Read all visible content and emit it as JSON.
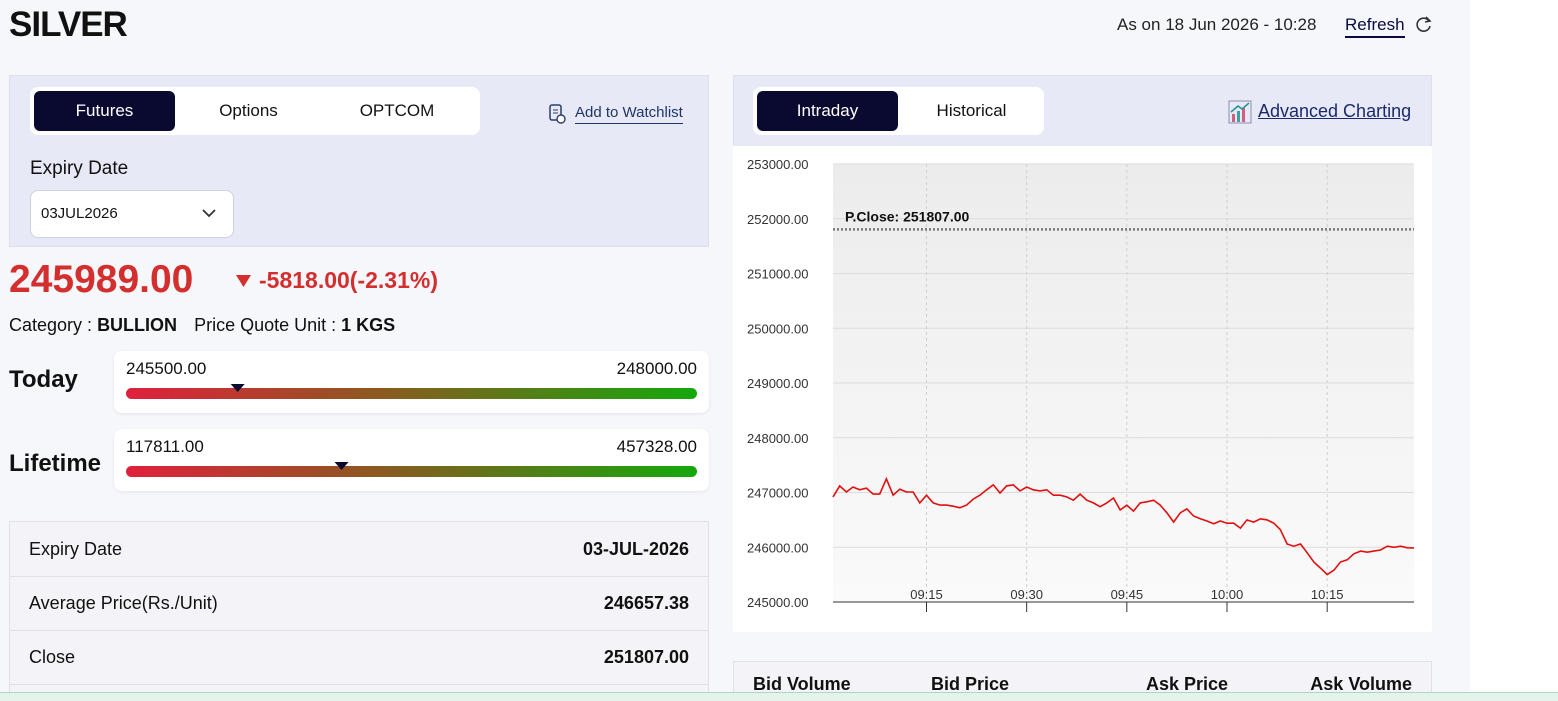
{
  "header": {
    "title": "SILVER",
    "as_on": "As on 18 Jun 2026 - 10:28",
    "refresh": "Refresh"
  },
  "left": {
    "tabs": [
      "Futures",
      "Options",
      "OPTCOM"
    ],
    "watchlist": "Add to Watchlist",
    "expiry_label": "Expiry Date",
    "expiry_value": "03JUL2026",
    "price": "245989.00",
    "change": "-5818.00(-2.31%)",
    "category_label": "Category :",
    "category": "BULLION",
    "unit_label": "Price Quote Unit :",
    "unit": "1 KGS",
    "ranges": [
      {
        "label": "Today",
        "low": "245500.00",
        "high": "248000.00"
      },
      {
        "label": "Lifetime",
        "low": "117811.00",
        "high": "457328.00"
      }
    ],
    "table": {
      "rows": [
        [
          "Expiry Date",
          "03-JUL-2026"
        ],
        [
          "Average Price(Rs./Unit)",
          "246657.38"
        ],
        [
          "Close",
          "251807.00"
        ]
      ]
    }
  },
  "right": {
    "tabs": [
      "Intraday",
      "Historical"
    ],
    "advanced": "Advanced Charting",
    "depth_headers": [
      "Bid Volume",
      "Bid Price",
      "Ask Price",
      "Ask Volume"
    ]
  },
  "chart_data": {
    "type": "line",
    "color": "#e01010",
    "x": [
      "09:01",
      "09:02",
      "09:03",
      "09:04",
      "09:05",
      "09:06",
      "09:07",
      "09:08",
      "09:09",
      "09:10",
      "09:11",
      "09:12",
      "09:13",
      "09:14",
      "09:15",
      "09:16",
      "09:17",
      "09:18",
      "09:19",
      "09:20",
      "09:21",
      "09:22",
      "09:23",
      "09:24",
      "09:25",
      "09:26",
      "09:27",
      "09:28",
      "09:29",
      "09:30",
      "09:31",
      "09:32",
      "09:33",
      "09:34",
      "09:35",
      "09:36",
      "09:37",
      "09:38",
      "09:39",
      "09:40",
      "09:41",
      "09:42",
      "09:43",
      "09:44",
      "09:45",
      "09:46",
      "09:47",
      "09:48",
      "09:49",
      "09:50",
      "09:51",
      "09:52",
      "09:53",
      "09:54",
      "09:55",
      "09:56",
      "09:57",
      "09:58",
      "09:59",
      "10:00",
      "10:01",
      "10:02",
      "10:03",
      "10:04",
      "10:05",
      "10:06",
      "10:07",
      "10:08",
      "10:09",
      "10:10",
      "10:11",
      "10:12",
      "10:13",
      "10:14",
      "10:15",
      "10:16",
      "10:17",
      "10:18",
      "10:19",
      "10:20",
      "10:21",
      "10:22",
      "10:23",
      "10:24",
      "10:25",
      "10:26",
      "10:27",
      "10:28"
    ],
    "values": [
      246920,
      247120,
      247010,
      247100,
      247050,
      247080,
      246970,
      246970,
      247250,
      246950,
      247060,
      247010,
      247010,
      246810,
      246950,
      246810,
      246770,
      246770,
      246750,
      246720,
      246770,
      246880,
      246950,
      247050,
      247140,
      246990,
      247120,
      247140,
      247030,
      247100,
      247050,
      247030,
      247050,
      246950,
      246950,
      246920,
      246860,
      246970,
      246860,
      246810,
      246740,
      246810,
      246900,
      246680,
      246770,
      246660,
      246810,
      246830,
      246860,
      246770,
      246630,
      246460,
      246630,
      246700,
      246570,
      246520,
      246480,
      246430,
      246480,
      246440,
      246440,
      246350,
      246500,
      246460,
      246520,
      246500,
      246440,
      246320,
      246060,
      246020,
      246060,
      245900,
      245730,
      245620,
      245500,
      245580,
      245730,
      245770,
      245880,
      245930,
      245910,
      245930,
      245950,
      246020,
      246000,
      246020,
      245990,
      245989
    ],
    "xlim": [
      "09:01",
      "10:28"
    ],
    "xticks": [
      "09:15",
      "09:30",
      "09:45",
      "10:00",
      "10:15"
    ],
    "ylim": [
      245000,
      253000
    ],
    "yticks": [
      {
        "value": 245000,
        "label": "245000.00"
      },
      {
        "value": 246000,
        "label": "246000.00"
      },
      {
        "value": 247000,
        "label": "247000.00"
      },
      {
        "value": 248000,
        "label": "248000.00"
      },
      {
        "value": 249000,
        "label": "249000.00"
      },
      {
        "value": 250000,
        "label": "250000.00"
      },
      {
        "value": 251000,
        "label": "251000.00"
      },
      {
        "value": 252000,
        "label": "252000.00"
      },
      {
        "value": 253000,
        "label": "253000.00"
      }
    ],
    "reference": {
      "value": 251807,
      "label": "P.Close: 251807.00"
    },
    "grid": true
  }
}
